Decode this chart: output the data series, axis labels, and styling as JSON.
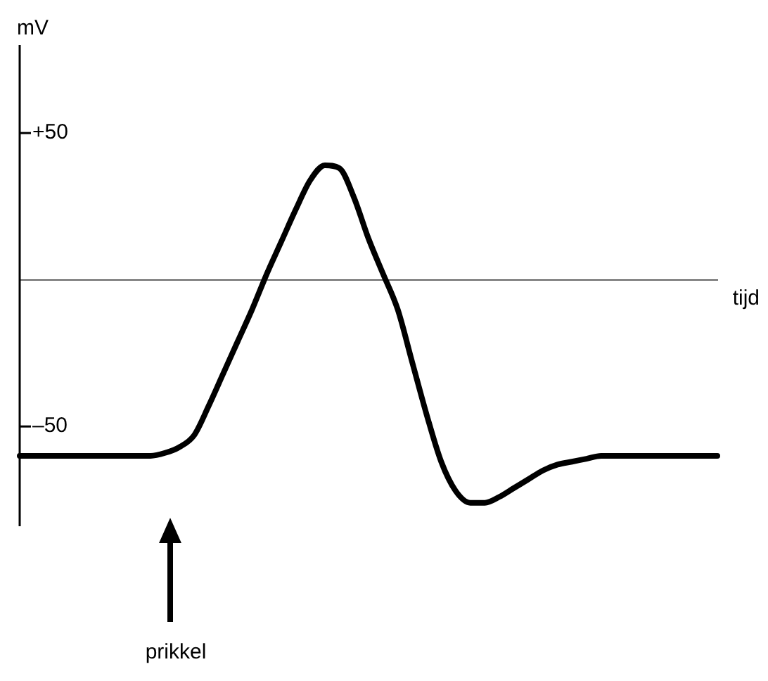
{
  "chart_data": {
    "type": "line",
    "ylabel": "mV",
    "xlabel": "tijd",
    "annotations": [
      "prikkel"
    ],
    "categories": [
      null,
      null,
      null,
      null,
      null,
      null,
      null,
      null,
      null,
      null,
      null,
      null,
      null,
      null,
      null,
      null,
      null,
      null,
      null,
      null,
      null,
      null,
      null,
      null,
      null,
      null,
      null,
      null,
      null,
      null,
      null,
      null,
      null,
      null,
      null,
      null,
      null,
      null,
      null,
      null,
      null,
      null,
      null,
      null,
      null,
      null,
      null,
      null,
      null
    ],
    "series": [
      {
        "color": "#000000",
        "values": [
          -60,
          -60,
          -60,
          -60,
          -60,
          -60,
          -60,
          -60,
          -60,
          -60,
          -59,
          -57,
          -53,
          -43,
          -32,
          -21,
          -10,
          2,
          13,
          24,
          34,
          39,
          38,
          28,
          14,
          2,
          -10,
          -28,
          -46,
          -62,
          -72,
          -76,
          -76,
          -74,
          -71,
          -68,
          -65,
          -63,
          -62,
          -61,
          -60,
          -60,
          -60,
          -60,
          -60,
          -60,
          -60,
          -60,
          -60
        ]
      }
    ],
    "ylim": [
      -84,
      80
    ],
    "yticks": [
      {
        "value": 50,
        "label": "+50"
      },
      {
        "value": -50,
        "label": "–50"
      }
    ],
    "grid": false,
    "legend": false,
    "marker": "none",
    "line_style": "solid"
  }
}
